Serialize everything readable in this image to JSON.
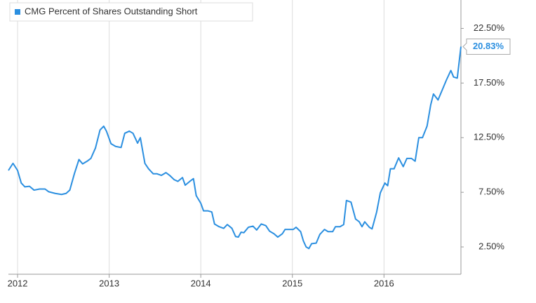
{
  "chart_data": {
    "type": "line",
    "x": [
      2011.9,
      2011.95,
      2012.0,
      2012.04,
      2012.08,
      2012.13,
      2012.18,
      2012.24,
      2012.3,
      2012.34,
      2012.41,
      2012.48,
      2012.53,
      2012.57,
      2012.62,
      2012.67,
      2012.71,
      2012.76,
      2012.8,
      2012.85,
      2012.9,
      2012.94,
      2012.97,
      2013.02,
      2013.07,
      2013.13,
      2013.17,
      2013.22,
      2013.26,
      2013.31,
      2013.34,
      2013.39,
      2013.43,
      2013.48,
      2013.52,
      2013.57,
      2013.62,
      2013.66,
      2013.71,
      2013.75,
      2013.8,
      2013.83,
      2013.88,
      2013.92,
      2013.95,
      2014.0,
      2014.03,
      2014.08,
      2014.12,
      2014.15,
      2014.2,
      2014.25,
      2014.29,
      2014.34,
      2014.38,
      2014.41,
      2014.44,
      2014.47,
      2014.52,
      2014.57,
      2014.61,
      2014.66,
      2014.71,
      2014.75,
      2014.8,
      2014.84,
      2014.89,
      2014.92,
      2014.97,
      2015.01,
      2015.04,
      2015.09,
      2015.12,
      2015.15,
      2015.18,
      2015.21,
      2015.26,
      2015.3,
      2015.35,
      2015.39,
      2015.44,
      2015.47,
      2015.52,
      2015.56,
      2015.59,
      2015.64,
      2015.69,
      2015.73,
      2015.76,
      2015.79,
      2015.84,
      2015.87,
      2015.92,
      2015.96,
      2016.01,
      2016.04,
      2016.07,
      2016.11,
      2016.16,
      2016.21,
      2016.25,
      2016.3,
      2016.34,
      2016.38,
      2016.42,
      2016.47,
      2016.51,
      2016.54,
      2016.59,
      2016.64,
      2016.68,
      2016.73,
      2016.76,
      2016.8,
      2016.84
    ],
    "series": [
      {
        "name": "CMG Percent of Shares Outstanding Short",
        "color": "#2b8fe0",
        "values": [
          9.5,
          10.15,
          9.5,
          8.35,
          8.0,
          8.05,
          7.7,
          7.8,
          7.8,
          7.55,
          7.4,
          7.3,
          7.4,
          7.7,
          9.2,
          10.5,
          10.1,
          10.35,
          10.6,
          11.55,
          13.2,
          13.55,
          13.1,
          11.95,
          11.7,
          11.6,
          12.9,
          13.1,
          12.9,
          12.0,
          12.5,
          10.15,
          9.65,
          9.2,
          9.2,
          9.05,
          9.3,
          9.05,
          8.65,
          8.5,
          8.85,
          8.15,
          8.5,
          8.75,
          7.2,
          6.5,
          5.8,
          5.8,
          5.7,
          4.6,
          4.35,
          4.2,
          4.55,
          4.2,
          3.45,
          3.4,
          3.85,
          3.8,
          4.3,
          4.4,
          4.05,
          4.6,
          4.45,
          3.95,
          3.7,
          3.4,
          3.7,
          4.1,
          4.1,
          4.1,
          4.3,
          3.9,
          3.05,
          2.5,
          2.35,
          2.8,
          2.85,
          3.65,
          4.1,
          3.9,
          3.9,
          4.35,
          4.35,
          4.55,
          6.75,
          6.6,
          5.05,
          4.8,
          4.35,
          4.8,
          4.3,
          4.15,
          5.7,
          7.45,
          8.35,
          8.1,
          9.65,
          9.65,
          10.65,
          9.85,
          10.6,
          10.6,
          10.35,
          12.5,
          12.5,
          13.55,
          15.5,
          16.5,
          15.95,
          16.95,
          17.75,
          18.65,
          18.05,
          17.95,
          20.83
        ],
        "value_labels": [
          null,
          null,
          null,
          null,
          null,
          null,
          null,
          null,
          null,
          null,
          null,
          null,
          null,
          null,
          null,
          null,
          null,
          null,
          null,
          null,
          null,
          null,
          null,
          null,
          null,
          null,
          null,
          null,
          null,
          null,
          null,
          null,
          null,
          null,
          null,
          null,
          null,
          null,
          null,
          null,
          null,
          null,
          null,
          null,
          null,
          null,
          null,
          null,
          null,
          null,
          null,
          null,
          null,
          null,
          null,
          null,
          null,
          null,
          null,
          null,
          null,
          null,
          null,
          null,
          null,
          null,
          null,
          null,
          null,
          null,
          null,
          null,
          null,
          null,
          null,
          null,
          null,
          null,
          null,
          null,
          null,
          null,
          null,
          null,
          null,
          null,
          null,
          null,
          null,
          null,
          null,
          null,
          null,
          null,
          null,
          null,
          null,
          null,
          null,
          null,
          null,
          null,
          null,
          null,
          null,
          null,
          null,
          null,
          null,
          null,
          null,
          null,
          null,
          null,
          "20.83%"
        ]
      }
    ],
    "xlim": [
      2011.9,
      2016.84
    ],
    "xticks": [
      2012,
      2013,
      2014,
      2015,
      2016
    ],
    "ylim": [
      0,
      25.1
    ],
    "yticks": [
      {
        "value": 2.5,
        "label": "2.50%"
      },
      {
        "value": 7.5,
        "label": "7.50%"
      },
      {
        "value": 12.5,
        "label": "12.50%"
      },
      {
        "value": 17.5,
        "label": "17.50%"
      },
      {
        "value": 22.5,
        "label": "22.50%"
      }
    ],
    "grid": "x",
    "legend": "top-left"
  }
}
